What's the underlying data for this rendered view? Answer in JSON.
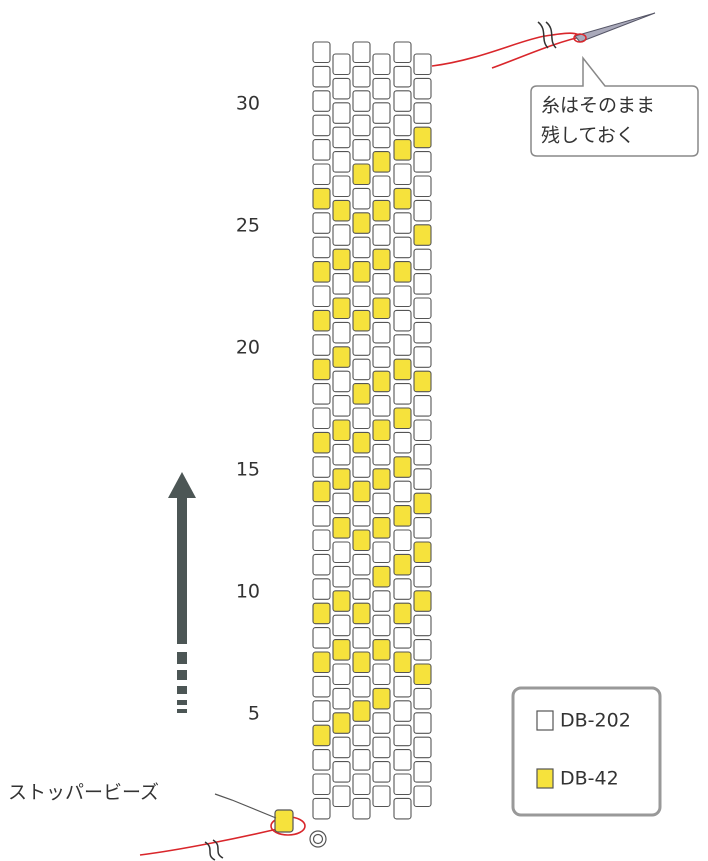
{
  "row_labels": [
    5,
    10,
    15,
    20,
    25,
    30
  ],
  "callout": {
    "lines": [
      "糸はそのまま",
      "残しておく"
    ]
  },
  "stopper_label": "ストッパービーズ",
  "legend": [
    {
      "label": "DB-202"
    },
    {
      "label": "DB-42"
    }
  ]
}
